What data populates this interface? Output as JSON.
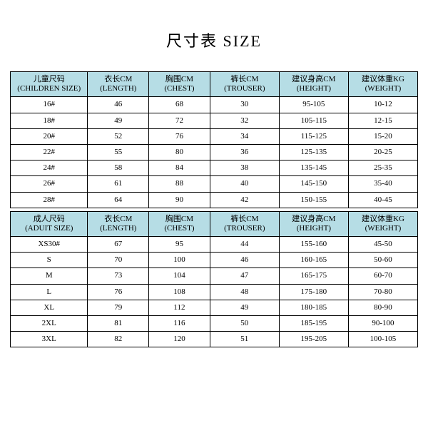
{
  "title": "尺寸表 SIZE",
  "colors": {
    "header_bg": "#b6dde5",
    "border": "#000000",
    "text": "#000000",
    "background": "#ffffff"
  },
  "childTable": {
    "headers": [
      {
        "cn": "儿童尺码",
        "en": "(CHILDREN SIZE)"
      },
      {
        "cn": "衣长CM",
        "en": "(LENGTH)"
      },
      {
        "cn": "胸围CM",
        "en": "(CHEST)"
      },
      {
        "cn": "裤长CM",
        "en": "(TROUSER)"
      },
      {
        "cn": "建议身高CM",
        "en": "(HEIGHT)"
      },
      {
        "cn": "建议体重KG",
        "en": "(WEIGHT)"
      }
    ],
    "rows": [
      [
        "16#",
        "46",
        "68",
        "30",
        "95-105",
        "10-12"
      ],
      [
        "18#",
        "49",
        "72",
        "32",
        "105-115",
        "12-15"
      ],
      [
        "20#",
        "52",
        "76",
        "34",
        "115-125",
        "15-20"
      ],
      [
        "22#",
        "55",
        "80",
        "36",
        "125-135",
        "20-25"
      ],
      [
        "24#",
        "58",
        "84",
        "38",
        "135-145",
        "25-35"
      ],
      [
        "26#",
        "61",
        "88",
        "40",
        "145-150",
        "35-40"
      ],
      [
        "28#",
        "64",
        "90",
        "42",
        "150-155",
        "40-45"
      ]
    ]
  },
  "adultTable": {
    "headers": [
      {
        "cn": "成人尺码",
        "en": "(ADUIT SIZE)"
      },
      {
        "cn": "衣长CM",
        "en": "(LENGTH)"
      },
      {
        "cn": "胸围CM",
        "en": "(CHEST)"
      },
      {
        "cn": "裤长CM",
        "en": "(TROUSER)"
      },
      {
        "cn": "建议身高CM",
        "en": "(HEIGHT)"
      },
      {
        "cn": "建议体重KG",
        "en": "(WEIGHT)"
      }
    ],
    "rows": [
      [
        "XS30#",
        "67",
        "95",
        "44",
        "155-160",
        "45-50"
      ],
      [
        "S",
        "70",
        "100",
        "46",
        "160-165",
        "50-60"
      ],
      [
        "M",
        "73",
        "104",
        "47",
        "165-175",
        "60-70"
      ],
      [
        "L",
        "76",
        "108",
        "48",
        "175-180",
        "70-80"
      ],
      [
        "XL",
        "79",
        "112",
        "49",
        "180-185",
        "80-90"
      ],
      [
        "2XL",
        "81",
        "116",
        "50",
        "185-195",
        "90-100"
      ],
      [
        "3XL",
        "82",
        "120",
        "51",
        "195-205",
        "100-105"
      ]
    ]
  }
}
